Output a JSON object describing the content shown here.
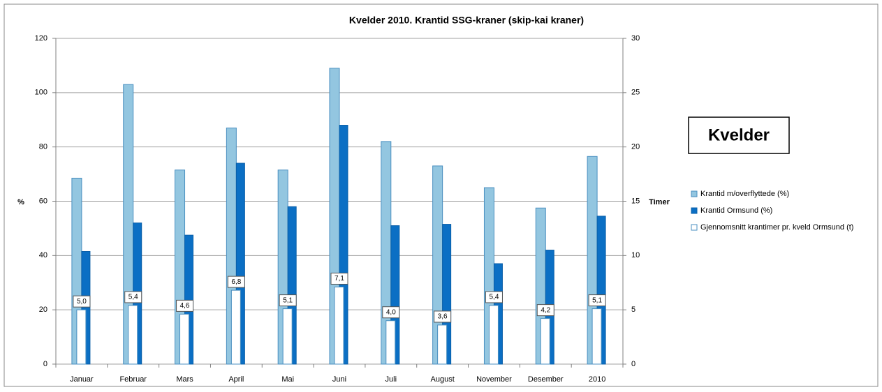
{
  "chart_data": {
    "type": "bar",
    "title": "Kvelder 2010. Krantid SSG-kraner (skip-kai kraner)",
    "annotation": "Kvelder",
    "y_label": "%",
    "y2_label": "Timer",
    "categories": [
      "Januar",
      "Februar",
      "Mars",
      "April",
      "Mai",
      "Juni",
      "Juli",
      "August",
      "November",
      "Desember",
      "2010"
    ],
    "series": [
      {
        "name": "Krantid m/overflyttede (%)",
        "color": "#93c6e0",
        "values": [
          68.5,
          103,
          71.5,
          87,
          71.5,
          109,
          82,
          73,
          65,
          57.5,
          76.5
        ]
      },
      {
        "name": "Krantid Ormsund (%)",
        "color": "#0b6fc4",
        "values": [
          41.5,
          52,
          47.5,
          74,
          58,
          88,
          51,
          51.5,
          37,
          42,
          54.5
        ]
      },
      {
        "name": "Gjennomsnitt krantimer pr. kveld Ormsund (t)",
        "color": "#ffffff",
        "axis": "y2",
        "values": [
          5.0,
          5.4,
          4.6,
          6.8,
          5.1,
          7.1,
          4.0,
          3.6,
          5.4,
          4.2,
          5.1
        ],
        "value_labels": [
          "5,0",
          "5,4",
          "4,6",
          "6,8",
          "5,1",
          "7,1",
          "4,0",
          "3,6",
          "5,4",
          "4,2",
          "5,1"
        ]
      }
    ],
    "ylim": [
      0,
      120
    ],
    "yticks": [
      0,
      20,
      40,
      60,
      80,
      100,
      120
    ],
    "y2lim": [
      0,
      30
    ],
    "y2ticks": [
      0,
      5,
      10,
      15,
      20,
      25,
      30
    ],
    "grid": true,
    "legend": "right"
  }
}
